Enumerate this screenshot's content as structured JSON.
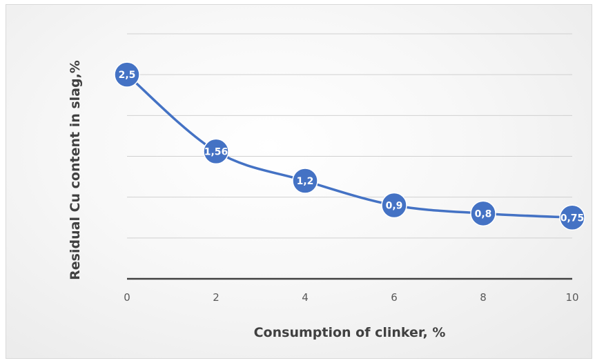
{
  "chart_data": {
    "type": "line",
    "title": "",
    "xlabel": "Consumption of clinker, %",
    "ylabel": "Residual Cu content in slag,%",
    "x": [
      0,
      2,
      4,
      6,
      8,
      10
    ],
    "series": [
      {
        "values": [
          2.5,
          1.56,
          1.2,
          0.9,
          0.8,
          0.75
        ],
        "labels": [
          "2,5",
          "1,56",
          "1,2",
          "0,9",
          "0,8",
          "0,75"
        ],
        "color": "#4472C4"
      }
    ],
    "x_tick_labels": [
      "0",
      "2",
      "4",
      "6",
      "8",
      "10"
    ],
    "xlim": [
      0,
      10
    ],
    "ylim": [
      0,
      3
    ],
    "y_gridline_step": 0.5,
    "y_tick_labels_shown": false,
    "grid": true,
    "legend": "none",
    "smooth": true,
    "colors": {
      "line": "#4472C4",
      "marker_edge": "#ffffff",
      "gridline": "#d0d0d0",
      "axis": "#404040"
    }
  }
}
